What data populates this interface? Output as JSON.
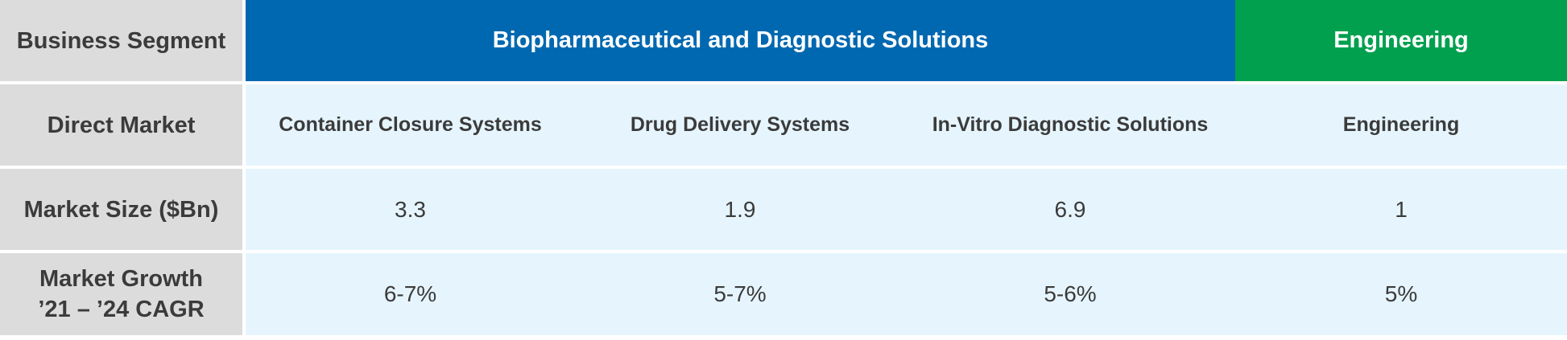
{
  "table": {
    "row_headers": {
      "business_segment": "Business Segment",
      "direct_market": "Direct Market",
      "market_size": "Market Size ($Bn)",
      "market_growth_line1": "Market Growth",
      "market_growth_line2": "’21 – ’24 CAGR"
    },
    "segments": {
      "bio": "Biopharmaceutical and Diagnostic Solutions",
      "engineering": "Engineering"
    },
    "markets": [
      {
        "name": "Container Closure Systems",
        "size": "3.3",
        "growth": "6-7%"
      },
      {
        "name": "Drug Delivery Systems",
        "size": "1.9",
        "growth": "5-7%"
      },
      {
        "name": "In-Vitro Diagnostic Solutions",
        "size": "6.9",
        "growth": "5-6%"
      },
      {
        "name": "Engineering",
        "size": "1",
        "growth": "5%"
      }
    ],
    "colors": {
      "bio_header": "#0068b0",
      "engineering_header": "#00a04f",
      "row_header_bg": "#dcdcdd",
      "data_bg": "#e6f5fd",
      "text": "#3b3b3b"
    }
  }
}
